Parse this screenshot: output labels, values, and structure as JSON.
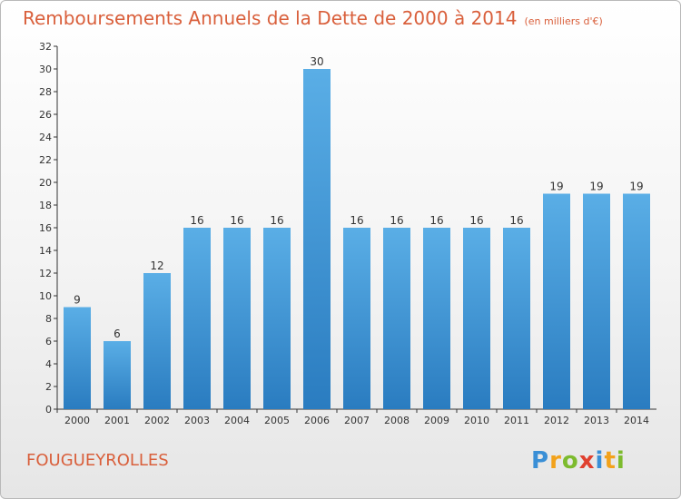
{
  "header": {
    "title": "Remboursements Annuels de la Dette de 2000 à 2014",
    "subtitle": "(en milliers d'€)"
  },
  "footer": {
    "commune": "FOUGUEYROLLES",
    "logo_text": "Proxiti"
  },
  "colors": {
    "accent": "#d95f3b",
    "bar_top": "#5aaee6",
    "bar_bottom": "#2a7cc0"
  },
  "chart_data": {
    "type": "bar",
    "categories": [
      "2000",
      "2001",
      "2002",
      "2003",
      "2004",
      "2005",
      "2006",
      "2007",
      "2008",
      "2009",
      "2010",
      "2011",
      "2012",
      "2013",
      "2014"
    ],
    "values": [
      9,
      6,
      12,
      16,
      16,
      16,
      30,
      16,
      16,
      16,
      16,
      16,
      19,
      19,
      19
    ],
    "title": "Remboursements Annuels de la Dette de 2000 à 2014",
    "subtitle": "(en milliers d'€)",
    "xlabel": "",
    "ylabel": "",
    "ylim": [
      0,
      32
    ],
    "yticks": [
      0,
      2,
      4,
      6,
      8,
      10,
      12,
      14,
      16,
      18,
      20,
      22,
      24,
      26,
      28,
      30,
      32
    ],
    "grid": false,
    "data_labels": true
  }
}
